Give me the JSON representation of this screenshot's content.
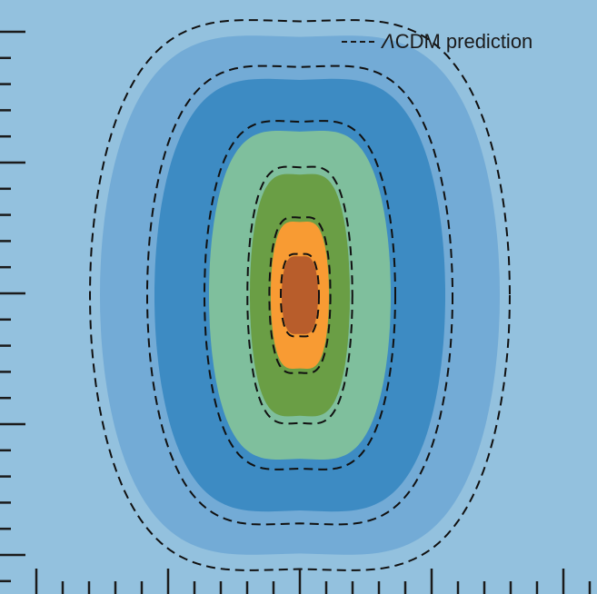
{
  "chart_data": {
    "type": "contour",
    "legend": {
      "placement": "top-right",
      "entries": [
        {
          "symbol": "Λ",
          "label": "CDM prediction",
          "style": "dashed",
          "color": "#1b1b1b"
        }
      ]
    },
    "background_color": "#93c1de",
    "contour_levels": [
      {
        "color": "#73abd6",
        "half_width": 220,
        "half_height": 300
      },
      {
        "color": "#3d8bc3",
        "half_width": 160,
        "half_height": 250
      },
      {
        "color": "#7fbf9d",
        "half_width": 100,
        "half_height": 190
      },
      {
        "color": "#6a9e45",
        "half_width": 55,
        "half_height": 140
      },
      {
        "color": "#f89b33",
        "half_width": 32,
        "half_height": 85
      },
      {
        "color": "#b85d2b",
        "half_width": 20,
        "half_height": 45
      }
    ],
    "prediction_style": "dashed-black",
    "xlabel": "",
    "ylabel": "",
    "tick_labels_visible": false
  }
}
